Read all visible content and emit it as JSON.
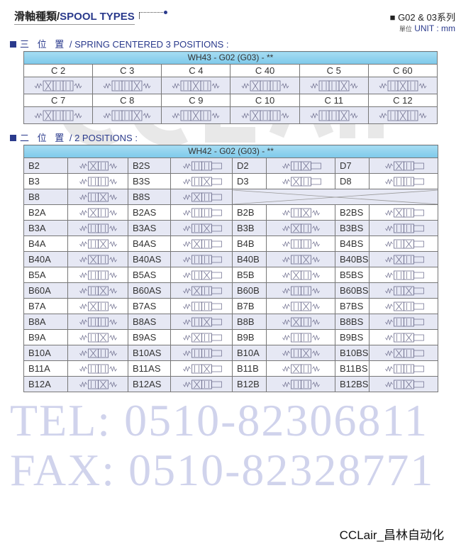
{
  "header": {
    "title_zh": "滑軸種類/",
    "title_en": "SPOOL TYPES",
    "series": "■ G02 & 03系列",
    "unit_zh": "單位",
    "unit": "UNIT : mm"
  },
  "section1": {
    "zh": "三 位 置",
    "en": "/ SPRING CENTERED 3 POSITIONS :",
    "model": "WH43 - G02 (G03) - **",
    "rows": [
      [
        "C 2",
        "C 3",
        "C 4",
        "C 40",
        "C 5",
        "C 60"
      ],
      [
        "C 7",
        "C 8",
        "C 9",
        "C 10",
        "C 11",
        "C 12"
      ]
    ]
  },
  "section2": {
    "zh": "二 位 置",
    "en": "/ 2 POSITIONS :",
    "model": "WH42 - G02 (G03) - **",
    "rows": [
      [
        "B2",
        "B2S",
        "D2",
        "D7"
      ],
      [
        "B3",
        "B3S",
        "D3",
        "D8"
      ],
      [
        "B8",
        "B8S"
      ],
      [
        "B2A",
        "B2AS",
        "B2B",
        "B2BS"
      ],
      [
        "B3A",
        "B3AS",
        "B3B",
        "B3BS"
      ],
      [
        "B4A",
        "B4AS",
        "B4B",
        "B4BS"
      ],
      [
        "B40A",
        "B40AS",
        "B40B",
        "B40BS"
      ],
      [
        "B5A",
        "B5AS",
        "B5B",
        "B5BS"
      ],
      [
        "B60A",
        "B60AS",
        "B60B",
        "B60BS"
      ],
      [
        "B7A",
        "B7AS",
        "B7B",
        "B7BS"
      ],
      [
        "B8A",
        "B8AS",
        "B8B",
        "B8BS"
      ],
      [
        "B9A",
        "B9AS",
        "B9B",
        "B9BS"
      ],
      [
        "B10A",
        "B10AS",
        "B10A",
        "B10BS"
      ],
      [
        "B11A",
        "B11AS",
        "B11B",
        "B11BS"
      ],
      [
        "B12A",
        "B12AS",
        "B12B",
        "B12BS"
      ]
    ]
  },
  "watermark": {
    "logo": "CCLair",
    "tel": "TEL: 0510-82306811",
    "fax": "FAX: 0510-82328771",
    "brand": "CCLair_昌林自动化"
  },
  "colors": {
    "accent": "#2a3a8c",
    "header_blue": "#8fd0ee",
    "row_alt": "#e6e8f4",
    "watermark": "#7880c8"
  }
}
